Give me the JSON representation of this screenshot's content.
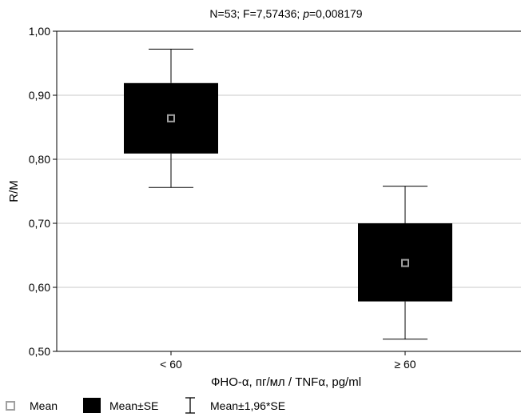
{
  "chart_data": {
    "type": "box",
    "title_parts": [
      {
        "text": "N=53; F=7,57436; ",
        "italic": false
      },
      {
        "text": "p",
        "italic": true
      },
      {
        "text": "=0,008179",
        "italic": false
      }
    ],
    "xlabel": "ФНО-α, пг/мл / TNFα, pg/ml",
    "ylabel": "R/M",
    "ylim": [
      0.5,
      1.0
    ],
    "yticks": [
      0.5,
      0.6,
      0.7,
      0.8,
      0.9,
      1.0
    ],
    "ytick_labels": [
      "0,50",
      "0,60",
      "0,70",
      "0,80",
      "0,90",
      "1,00"
    ],
    "grid": true,
    "categories": [
      "< 60",
      "≥ 60"
    ],
    "groups": [
      {
        "category": "< 60",
        "mean": 0.864,
        "se_low": 0.809,
        "se_high": 0.919,
        "ci_low": 0.756,
        "ci_high": 0.972
      },
      {
        "category": "≥ 60",
        "mean": 0.638,
        "se_low": 0.578,
        "se_high": 0.7,
        "ci_low": 0.519,
        "ci_high": 0.758
      }
    ],
    "legend": {
      "placement": "bottom",
      "items": [
        {
          "key": "mean",
          "label": "Mean"
        },
        {
          "key": "se",
          "label": "Mean±SE"
        },
        {
          "key": "ci",
          "label": "Mean±1,96*SE"
        }
      ]
    },
    "colors": {
      "box": "#000000",
      "mean_marker": "#a0a0a0",
      "grid": "#c8c8c8"
    }
  }
}
